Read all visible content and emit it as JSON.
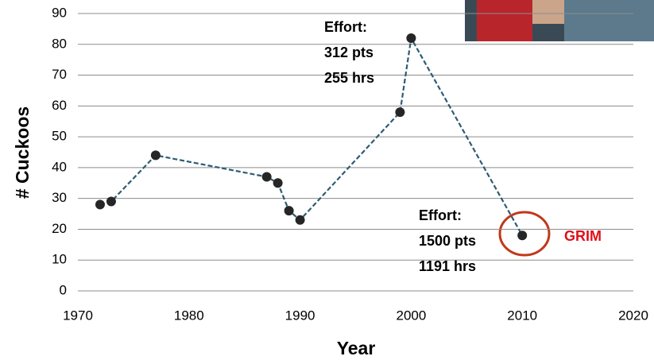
{
  "chart_data": {
    "type": "line",
    "x_label": "Year",
    "y_label": "# Cuckoos",
    "x": [
      1972,
      1973,
      1977,
      1987,
      1988,
      1989,
      1990,
      1999,
      2000,
      2010
    ],
    "values": [
      28,
      29,
      44,
      37,
      35,
      26,
      23,
      58,
      82,
      18
    ],
    "color": "#2e5b73",
    "marker_color": "#262626",
    "xlim": [
      1970,
      2020
    ],
    "xticks": [
      1970,
      1980,
      1990,
      2000,
      2010,
      2020
    ],
    "ylim": [
      0,
      90
    ],
    "yticks": [
      0,
      10,
      20,
      30,
      40,
      50,
      60,
      70,
      80,
      90
    ],
    "grid": true,
    "annotations": [
      [
        "Effort:",
        "312 pts",
        "255 hrs"
      ],
      [
        "Effort:",
        "1500 pts",
        "1191 hrs"
      ]
    ],
    "highlight_label": "GRIM"
  }
}
